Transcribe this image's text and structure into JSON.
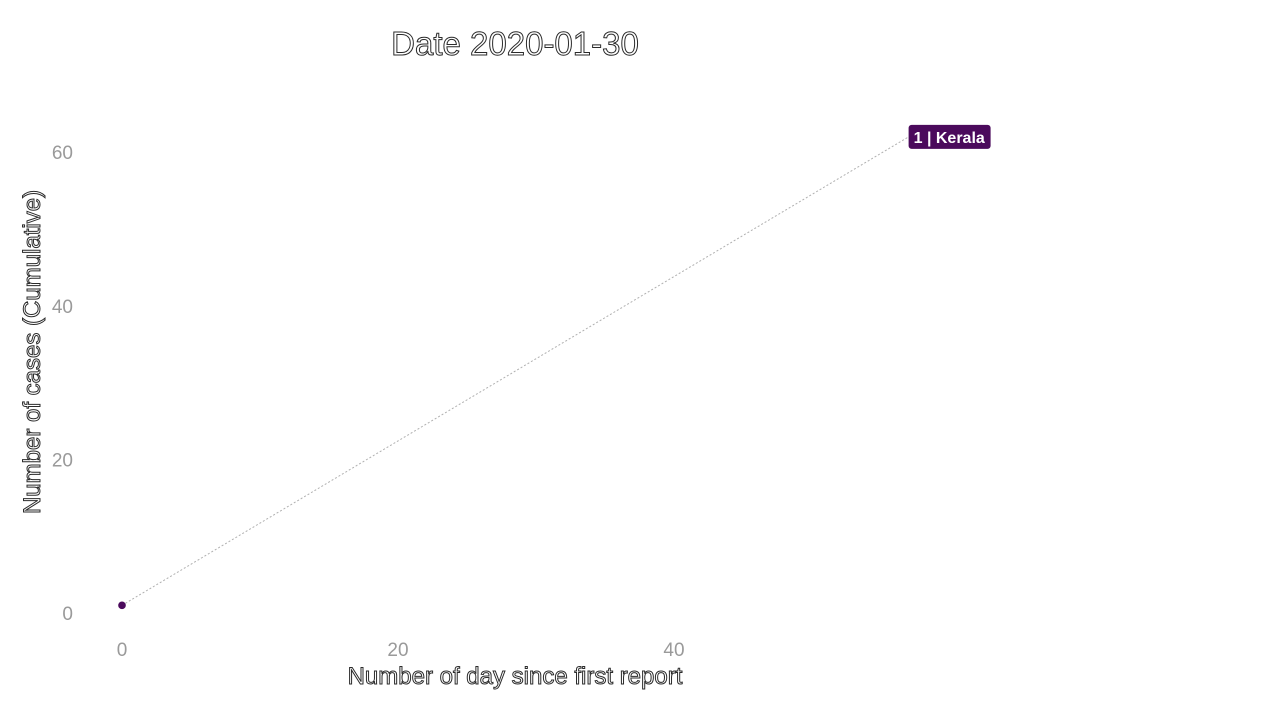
{
  "chart_data": {
    "type": "scatter",
    "title": "Date 2020-01-30",
    "xlabel": "Number of day since first report",
    "ylabel": "Number of cases (Cumulative)",
    "xlim": [
      0,
      65
    ],
    "ylim": [
      0,
      65
    ],
    "x_ticks": [
      0,
      20,
      40
    ],
    "y_ticks": [
      0,
      20,
      40,
      60
    ],
    "grid": false,
    "series": [
      {
        "name": "Kerala",
        "color": "#4b0a5c",
        "points": [
          {
            "x": 0,
            "y": 1
          }
        ]
      }
    ],
    "annotations": [
      {
        "text": "1 | Kerala",
        "anchor_x": 0,
        "anchor_y": 1,
        "label_x": 57,
        "label_y": 62,
        "color": "#4b0a5c",
        "connector_color": "#b0b0b0"
      }
    ]
  }
}
